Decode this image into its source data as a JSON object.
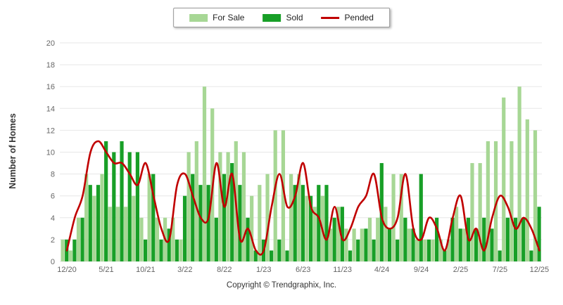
{
  "colors": {
    "for_sale": "#a7d795",
    "sold": "#189f27",
    "pended": "#c00000",
    "grid": "#e7e7e7",
    "axis_text": "#666666",
    "background": "#ffffff"
  },
  "legend": {
    "for_sale_label": "For Sale",
    "sold_label": "Sold",
    "pended_label": "Pended"
  },
  "footer": {
    "text": "Copyright © Trendgraphix, Inc."
  },
  "chart_data": {
    "type": "bar",
    "title": "",
    "xlabel": "",
    "ylabel": "Number of Homes",
    "ylim": [
      0,
      20
    ],
    "y_ticks": [
      0,
      2,
      4,
      6,
      8,
      10,
      12,
      14,
      16,
      18,
      20
    ],
    "grid": "horizontal",
    "legend_position": "top-center",
    "months": [
      "12/20",
      "1/21",
      "2/21",
      "3/21",
      "4/21",
      "5/21",
      "6/21",
      "7/21",
      "8/21",
      "9/21",
      "10/21",
      "11/21",
      "12/21",
      "1/22",
      "2/22",
      "3/22",
      "4/22",
      "5/22",
      "6/22",
      "7/22",
      "8/22",
      "9/22",
      "10/22",
      "11/22",
      "12/22",
      "1/23",
      "2/23",
      "3/23",
      "4/23",
      "5/23",
      "6/23",
      "7/23",
      "8/23",
      "9/23",
      "10/23",
      "11/23",
      "12/23",
      "1/24",
      "2/24",
      "3/24",
      "4/24",
      "5/24",
      "6/24",
      "7/24",
      "8/24",
      "9/24",
      "10/24",
      "11/24",
      "12/24",
      "1/25",
      "2/25",
      "3/25",
      "4/25",
      "5/25",
      "6/25",
      "7/25",
      "8/25",
      "9/25",
      "10/25",
      "11/25",
      "12/25"
    ],
    "x_tick_labels": [
      "12/20",
      "5/21",
      "10/21",
      "3/22",
      "8/22",
      "1/23",
      "6/23",
      "11/23",
      "4/24",
      "9/24",
      "2/25",
      "7/25",
      "12/25"
    ],
    "x_tick_every": 5,
    "series": [
      {
        "name": "For Sale",
        "type": "bar",
        "values": [
          2,
          1,
          4,
          8,
          6,
          8,
          5,
          5,
          5,
          6,
          4,
          8,
          4,
          4,
          4,
          2,
          10,
          11,
          16,
          14,
          10,
          10,
          11,
          10,
          6,
          7,
          8,
          12,
          12,
          8,
          8,
          6,
          5,
          6,
          3,
          5,
          3,
          3,
          3,
          4,
          4,
          5,
          8,
          8,
          3,
          2,
          2,
          2,
          2,
          2,
          5,
          3,
          9,
          9,
          11,
          11,
          15,
          11,
          16,
          13,
          12
        ]
      },
      {
        "name": "Sold",
        "type": "bar",
        "values": [
          2,
          2,
          4,
          7,
          7,
          11,
          10,
          11,
          10,
          10,
          2,
          8,
          2,
          3,
          2,
          6,
          8,
          7,
          7,
          4,
          8,
          9,
          7,
          4,
          1,
          2,
          1,
          2,
          1,
          7,
          7,
          6,
          7,
          7,
          4,
          5,
          1,
          2,
          3,
          2,
          9,
          3,
          2,
          4,
          3,
          8,
          2,
          4,
          1,
          4,
          3,
          4,
          3,
          4,
          3,
          1,
          4,
          4,
          4,
          1,
          5
        ]
      },
      {
        "name": "Pended",
        "type": "line",
        "values": [
          1,
          4,
          6,
          10,
          11,
          10,
          9,
          9,
          8,
          7,
          9,
          6,
          3,
          2,
          7,
          8,
          6,
          4,
          4,
          9,
          5,
          8,
          2,
          3,
          1,
          1,
          5,
          8,
          5,
          6,
          9,
          5,
          4,
          2,
          5,
          2,
          3,
          5,
          6,
          8,
          4,
          3,
          4,
          8,
          3,
          2,
          4,
          3,
          1,
          4,
          6,
          2,
          3,
          1,
          4,
          6,
          5,
          3,
          4,
          3,
          1
        ]
      }
    ]
  }
}
